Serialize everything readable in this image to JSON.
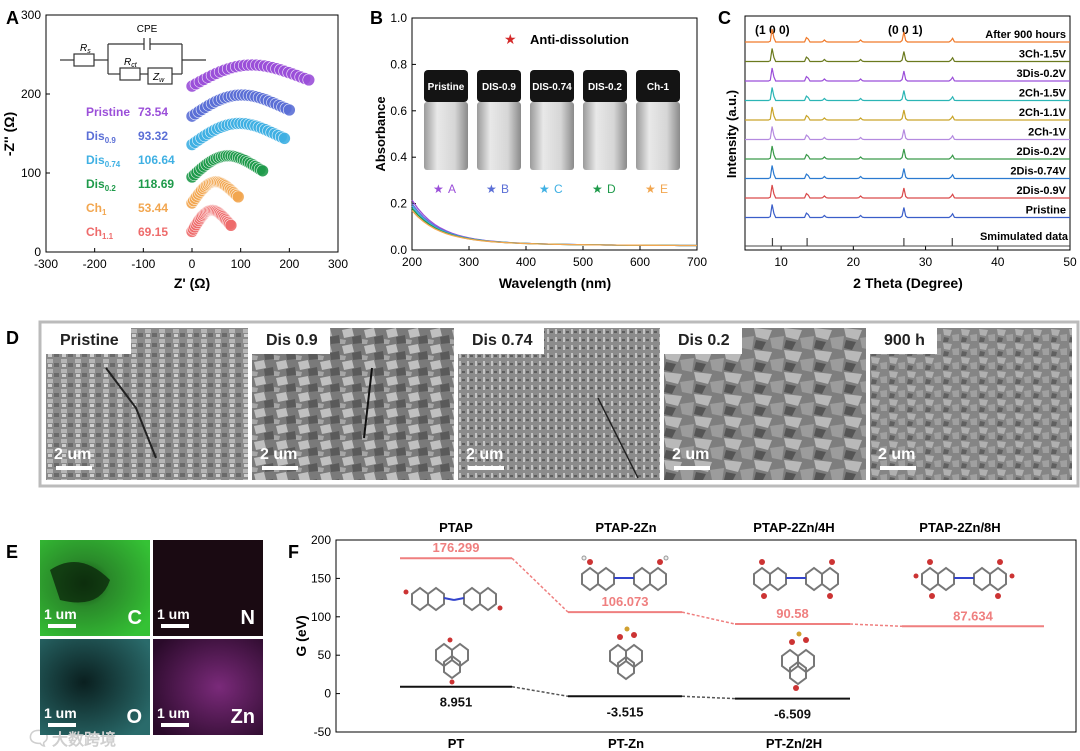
{
  "panel_labels": [
    "A",
    "B",
    "C",
    "D",
    "E",
    "F"
  ],
  "panelA": {
    "type": "scatter",
    "xlabel": "Z' (Ω)",
    "ylabel": "-Z'' (Ω)",
    "xlim": [
      -300,
      300
    ],
    "ylim": [
      0,
      300
    ],
    "xticks": [
      "-300",
      "-200",
      "-100",
      "0",
      "100",
      "200",
      "300"
    ],
    "yticks": [
      "0",
      "100",
      "200",
      "300"
    ],
    "circuit": {
      "rs": "R",
      "rs_sub": "s",
      "rct": "R",
      "rct_sub": "ct",
      "zw": "Z",
      "zw_sub": "w",
      "cpe": "CPE"
    },
    "series": [
      {
        "name": "Pristine",
        "sub": "",
        "value": "73.54",
        "color": "#9b4fd9",
        "offset": 210,
        "end": 240
      },
      {
        "name": "Dis",
        "sub": "0.9",
        "value": "93.32",
        "color": "#5b6fd6",
        "offset": 172,
        "end": 200
      },
      {
        "name": "Dis",
        "sub": "0.74",
        "value": "106.64",
        "color": "#3fb0e3",
        "offset": 136,
        "end": 190
      },
      {
        "name": "Dis",
        "sub": "0.2",
        "value": "118.69",
        "color": "#1e9a4a",
        "offset": 95,
        "end": 145
      },
      {
        "name": "Ch",
        "sub": "1",
        "value": "53.44",
        "color": "#f2a64f",
        "offset": 62,
        "end": 95
      },
      {
        "name": "Ch",
        "sub": "1.1",
        "value": "69.15",
        "color": "#ee6b6b",
        "offset": 26,
        "end": 80
      }
    ]
  },
  "panelB": {
    "type": "line",
    "xlabel": "Wavelength (nm)",
    "ylabel": "Absorbance",
    "xlim": [
      200,
      700
    ],
    "ylim": [
      0,
      1.0
    ],
    "xticks": [
      "200",
      "300",
      "400",
      "500",
      "600",
      "700"
    ],
    "yticks": [
      "0.0",
      "0.2",
      "0.4",
      "0.6",
      "0.8",
      "1.0"
    ],
    "legend_title": "Anti-dissolution",
    "vials": [
      "Pristine",
      "DIS-0.9",
      "DIS-0.74",
      "DIS-0.2",
      "Ch-1"
    ],
    "markers": [
      {
        "label": "A",
        "color": "#9b4fd9"
      },
      {
        "label": "B",
        "color": "#5b6fd6"
      },
      {
        "label": "C",
        "color": "#3fb0e3"
      },
      {
        "label": "D",
        "color": "#1e9a4a"
      },
      {
        "label": "E",
        "color": "#f2a64f"
      }
    ],
    "series": [
      {
        "color": "#9b4fd9",
        "start": 0.185
      },
      {
        "color": "#5b6fd6",
        "start": 0.17
      },
      {
        "color": "#3fb0e3",
        "start": 0.16
      },
      {
        "color": "#1e9a4a",
        "start": 0.15
      },
      {
        "color": "#f2a64f",
        "start": 0.14
      }
    ]
  },
  "panelC": {
    "type": "line",
    "xlabel": "2 Theta (Degree)",
    "ylabel": "Intensity (a.u.)",
    "xlim": [
      5,
      50
    ],
    "xticks": [
      "10",
      "20",
      "30",
      "40",
      "50"
    ],
    "peaks": [
      "(1 0 0)",
      "(0 0 1)"
    ],
    "series": [
      {
        "name": "After 900 hours",
        "color": "#f07a2a"
      },
      {
        "name": "3Ch-1.5V",
        "color": "#6b7a1e"
      },
      {
        "name": "3Dis-0.2V",
        "color": "#9b4fd9"
      },
      {
        "name": "2Ch-1.5V",
        "color": "#2bb5b5"
      },
      {
        "name": "2Ch-1.1V",
        "color": "#c9a52a"
      },
      {
        "name": "2Ch-1V",
        "color": "#b48ae0"
      },
      {
        "name": "2Dis-0.2V",
        "color": "#3a9a4a"
      },
      {
        "name": "2Dis-0.74V",
        "color": "#2a7ad0"
      },
      {
        "name": "2Dis-0.9V",
        "color": "#d94a4a"
      },
      {
        "name": "Pristine",
        "color": "#3a5ec9"
      },
      {
        "name": "Smimulated data",
        "color": "#444444"
      }
    ]
  },
  "panelD": {
    "images": [
      {
        "label": "Pristine",
        "scale": "2 um"
      },
      {
        "label": "Dis 0.9",
        "scale": "2 um"
      },
      {
        "label": "Dis 0.74",
        "scale": "2 um"
      },
      {
        "label": "Dis 0.2",
        "scale": "2 um"
      },
      {
        "label": "900 h",
        "scale": "2 um"
      }
    ]
  },
  "panelE": {
    "maps": [
      {
        "element": "C",
        "scale": "1 um",
        "color": "#2bb52b"
      },
      {
        "element": "N",
        "scale": "1 um",
        "color": "#1a0a12"
      },
      {
        "element": "O",
        "scale": "1 um",
        "color": "#1f5a5a"
      },
      {
        "element": "Zn",
        "scale": "1 um",
        "color": "#5a1a5a"
      }
    ]
  },
  "panelF": {
    "type": "energy-diagram",
    "ylabel": "G (eV)",
    "ylim": [
      -50,
      200
    ],
    "yticks": [
      "-50",
      "0",
      "50",
      "100",
      "150",
      "200"
    ],
    "top_labels": [
      "PTAP",
      "PTAP-2Zn",
      "PTAP-2Zn/4H",
      "PTAP-2Zn/8H"
    ],
    "bottom_labels": [
      "PT",
      "PT-Zn",
      "PT-Zn/2H"
    ],
    "upper": [
      {
        "value": 176.299,
        "text": "176.299"
      },
      {
        "value": 106.073,
        "text": "106.073"
      },
      {
        "value": 90.58,
        "text": "90.58"
      },
      {
        "value": 87.634,
        "text": "87.634"
      }
    ],
    "lower": [
      {
        "value": 8.951,
        "text": "8.951"
      },
      {
        "value": -3.515,
        "text": "-3.515"
      },
      {
        "value": -6.509,
        "text": "-6.509"
      }
    ],
    "upper_color": "#ef7f7f",
    "lower_color": "#111111"
  },
  "watermark": "大数跨境"
}
